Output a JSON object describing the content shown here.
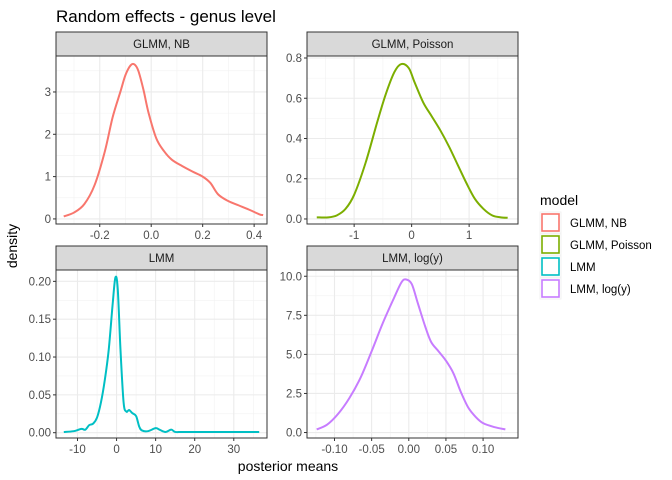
{
  "chart_data": {
    "type": "line",
    "title": "Random effects - genus level",
    "xlabel": "posterior means",
    "ylabel": "density",
    "legend": {
      "title": "model",
      "placement": "right",
      "entries": [
        {
          "label": "GLMM, NB",
          "color": "#F8766D"
        },
        {
          "label": "GLMM, Poisson",
          "color": "#7CAE00"
        },
        {
          "label": "LMM",
          "color": "#00BFC4"
        },
        {
          "label": "LMM, log(y)",
          "color": "#C77CFF"
        }
      ]
    },
    "grid": true,
    "facets": [
      {
        "strip": "GLMM, NB",
        "color": "#F8766D",
        "xlim": [
          -0.37,
          0.45
        ],
        "ylim": [
          -0.12,
          3.85
        ],
        "xticks": [
          {
            "v": -0.2,
            "label": "-0.2"
          },
          {
            "v": 0.0,
            "label": "0.0"
          },
          {
            "v": 0.2,
            "label": "0.2"
          },
          {
            "v": 0.4,
            "label": "0.4"
          }
        ],
        "yticks": [
          {
            "v": 0,
            "label": "0"
          },
          {
            "v": 1,
            "label": "1"
          },
          {
            "v": 2,
            "label": "2"
          },
          {
            "v": 3,
            "label": "3"
          }
        ],
        "points": [
          [
            -0.34,
            0.06
          ],
          [
            -0.3,
            0.15
          ],
          [
            -0.26,
            0.35
          ],
          [
            -0.22,
            0.8
          ],
          [
            -0.18,
            1.6
          ],
          [
            -0.15,
            2.4
          ],
          [
            -0.12,
            3.0
          ],
          [
            -0.1,
            3.4
          ],
          [
            -0.08,
            3.63
          ],
          [
            -0.065,
            3.65
          ],
          [
            -0.05,
            3.5
          ],
          [
            -0.03,
            3.05
          ],
          [
            -0.01,
            2.5
          ],
          [
            0.02,
            1.9
          ],
          [
            0.05,
            1.6
          ],
          [
            0.08,
            1.4
          ],
          [
            0.12,
            1.25
          ],
          [
            0.16,
            1.12
          ],
          [
            0.2,
            1.0
          ],
          [
            0.23,
            0.85
          ],
          [
            0.26,
            0.58
          ],
          [
            0.3,
            0.42
          ],
          [
            0.34,
            0.32
          ],
          [
            0.38,
            0.22
          ],
          [
            0.42,
            0.11
          ],
          [
            0.435,
            0.09
          ]
        ]
      },
      {
        "strip": "GLMM, Poisson",
        "color": "#7CAE00",
        "xlim": [
          -1.82,
          1.85
        ],
        "ylim": [
          -0.025,
          0.81
        ],
        "xticks": [
          {
            "v": -1,
            "label": "-1"
          },
          {
            "v": 0,
            "label": "0"
          },
          {
            "v": 1,
            "label": "1"
          }
        ],
        "yticks": [
          {
            "v": 0,
            "label": "0.0"
          },
          {
            "v": 0.2,
            "label": "0.2"
          },
          {
            "v": 0.4,
            "label": "0.4"
          },
          {
            "v": 0.6,
            "label": "0.6"
          },
          {
            "v": 0.8,
            "label": "0.8"
          }
        ],
        "points": [
          [
            -1.65,
            0.008
          ],
          [
            -1.45,
            0.008
          ],
          [
            -1.3,
            0.018
          ],
          [
            -1.15,
            0.05
          ],
          [
            -1.0,
            0.12
          ],
          [
            -0.8,
            0.28
          ],
          [
            -0.6,
            0.48
          ],
          [
            -0.45,
            0.62
          ],
          [
            -0.3,
            0.73
          ],
          [
            -0.18,
            0.77
          ],
          [
            -0.05,
            0.75
          ],
          [
            0.05,
            0.68
          ],
          [
            0.2,
            0.58
          ],
          [
            0.35,
            0.51
          ],
          [
            0.5,
            0.44
          ],
          [
            0.65,
            0.36
          ],
          [
            0.8,
            0.27
          ],
          [
            0.95,
            0.18
          ],
          [
            1.1,
            0.1
          ],
          [
            1.25,
            0.05
          ],
          [
            1.4,
            0.018
          ],
          [
            1.55,
            0.008
          ],
          [
            1.67,
            0.006
          ]
        ]
      },
      {
        "strip": "LMM",
        "color": "#00BFC4",
        "xlim": [
          -15.5,
          38.5
        ],
        "ylim": [
          -0.007,
          0.215
        ],
        "xticks": [
          {
            "v": -10,
            "label": "-10"
          },
          {
            "v": 0,
            "label": "0"
          },
          {
            "v": 10,
            "label": "10"
          },
          {
            "v": 20,
            "label": "20"
          },
          {
            "v": 30,
            "label": "30"
          }
        ],
        "yticks": [
          {
            "v": 0,
            "label": "0.00"
          },
          {
            "v": 0.05,
            "label": "0.05"
          },
          {
            "v": 0.1,
            "label": "0.10"
          },
          {
            "v": 0.15,
            "label": "0.15"
          },
          {
            "v": 0.2,
            "label": "0.20"
          }
        ],
        "points": [
          [
            -13.5,
            0.001
          ],
          [
            -11,
            0.002
          ],
          [
            -9,
            0.005
          ],
          [
            -8,
            0.004
          ],
          [
            -7,
            0.01
          ],
          [
            -6,
            0.012
          ],
          [
            -5,
            0.02
          ],
          [
            -4,
            0.04
          ],
          [
            -3,
            0.07
          ],
          [
            -2,
            0.11
          ],
          [
            -1,
            0.17
          ],
          [
            -0.3,
            0.205
          ],
          [
            0.3,
            0.19
          ],
          [
            1,
            0.11
          ],
          [
            1.8,
            0.04
          ],
          [
            2.5,
            0.028
          ],
          [
            3.2,
            0.03
          ],
          [
            4,
            0.026
          ],
          [
            5,
            0.022
          ],
          [
            5.8,
            0.008
          ],
          [
            6.5,
            0.003
          ],
          [
            8,
            0.002
          ],
          [
            10,
            0.006
          ],
          [
            11,
            0.004
          ],
          [
            12.5,
            0.001
          ],
          [
            14,
            0.004
          ],
          [
            15,
            0.001
          ],
          [
            17,
            0.001
          ],
          [
            22,
            0.001
          ],
          [
            30,
            0.001
          ],
          [
            36.5,
            0.001
          ]
        ]
      },
      {
        "strip": "LMM, log(y)",
        "color": "#C77CFF",
        "xlim": [
          -0.137,
          0.147
        ],
        "ylim": [
          -0.35,
          10.4
        ],
        "xticks": [
          {
            "v": -0.1,
            "label": "-0.10"
          },
          {
            "v": -0.05,
            "label": "-0.05"
          },
          {
            "v": 0.0,
            "label": "0.00"
          },
          {
            "v": 0.05,
            "label": "0.05"
          },
          {
            "v": 0.1,
            "label": "0.10"
          }
        ],
        "yticks": [
          {
            "v": 0,
            "label": "0.0"
          },
          {
            "v": 2.5,
            "label": "2.5"
          },
          {
            "v": 5,
            "label": "5.0"
          },
          {
            "v": 7.5,
            "label": "7.5"
          },
          {
            "v": 10,
            "label": "10.0"
          }
        ],
        "points": [
          [
            -0.124,
            0.2
          ],
          [
            -0.11,
            0.5
          ],
          [
            -0.095,
            1.2
          ],
          [
            -0.08,
            2.2
          ],
          [
            -0.065,
            3.5
          ],
          [
            -0.05,
            5.2
          ],
          [
            -0.035,
            7.0
          ],
          [
            -0.02,
            8.6
          ],
          [
            -0.01,
            9.6
          ],
          [
            -0.004,
            9.8
          ],
          [
            0.004,
            9.5
          ],
          [
            0.012,
            8.3
          ],
          [
            0.022,
            6.8
          ],
          [
            0.03,
            5.8
          ],
          [
            0.04,
            5.2
          ],
          [
            0.05,
            4.6
          ],
          [
            0.06,
            3.8
          ],
          [
            0.07,
            2.6
          ],
          [
            0.08,
            1.6
          ],
          [
            0.09,
            1.0
          ],
          [
            0.1,
            0.6
          ],
          [
            0.115,
            0.35
          ],
          [
            0.13,
            0.2
          ]
        ]
      }
    ]
  }
}
